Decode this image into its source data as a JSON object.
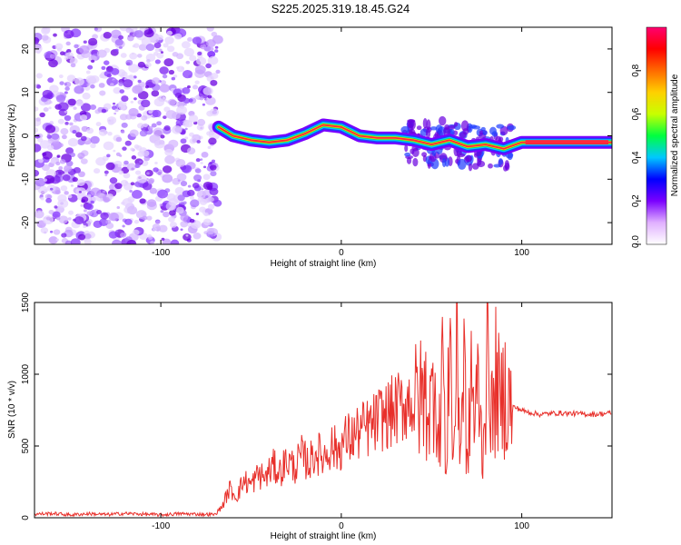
{
  "title": "S225.2025.319.18.45.G24",
  "colors": {
    "snr_line": "#e8302b",
    "frame": "#000000",
    "track_core": "#ff2a3c",
    "track_mid": "#19e04a",
    "track_outer": "#1e90ff",
    "noise": "#8a2be2"
  },
  "chart_data": [
    {
      "type": "heatmap",
      "name": "spectrogram",
      "xlabel": "Height of straight line (km)",
      "ylabel": "Frequency (Hz)",
      "xlim": [
        -170,
        150
      ],
      "ylim": [
        -25,
        25
      ],
      "xticks": [
        -100,
        0,
        100
      ],
      "xtick_labels": [
        "-100",
        "0",
        "100"
      ],
      "yticks": [
        -20,
        -10,
        0,
        10,
        20
      ],
      "ytick_labels": [
        "-20",
        "-10",
        "0",
        "10",
        "20"
      ],
      "noise_region_x": [
        -170,
        -68
      ],
      "track": {
        "x": [
          -68,
          -60,
          -50,
          -40,
          -30,
          -20,
          -10,
          0,
          10,
          20,
          30,
          40,
          50,
          60,
          70,
          80,
          90,
          100,
          110,
          120,
          130,
          140,
          150
        ],
        "freq": [
          2,
          0,
          -1,
          -1.5,
          -1,
          0.5,
          2.5,
          2,
          0,
          -0.5,
          -0.5,
          -1,
          -2,
          -1,
          -2.5,
          -2,
          -3,
          -1.5,
          -1.5,
          -1.5,
          -1.5,
          -1.5,
          -1.5
        ]
      },
      "colorbar": {
        "label": "Normalized spectral amplitude",
        "range": [
          0,
          1
        ],
        "ticks": [
          0.0,
          0.2,
          0.4,
          0.6,
          0.8
        ],
        "tick_labels": [
          "0.0",
          "0.2",
          "0.4",
          "0.6",
          "0.8"
        ],
        "gradient": [
          "#ffffff",
          "#e0b0ff",
          "#7a00ff",
          "#0000ff",
          "#00c8ff",
          "#00ff40",
          "#c8ff00",
          "#ffd000",
          "#ff6a00",
          "#ff0000",
          "#ff0070"
        ]
      }
    },
    {
      "type": "line",
      "name": "snr",
      "xlabel": "Height of straight line (km)",
      "ylabel": "SNR (10 * v/v)",
      "xlim": [
        -170,
        150
      ],
      "ylim": [
        0,
        1500
      ],
      "xticks": [
        -100,
        0,
        100
      ],
      "xtick_labels": [
        "-100",
        "0",
        "100"
      ],
      "yticks": [
        0,
        500,
        1000,
        1500
      ],
      "ytick_labels": [
        "0",
        "500",
        "1000",
        "1500"
      ],
      "series": [
        {
          "name": "SNR",
          "x": [
            -170,
            -160,
            -150,
            -140,
            -130,
            -120,
            -110,
            -100,
            -90,
            -80,
            -70,
            -66,
            -62,
            -58,
            -54,
            -50,
            -46,
            -42,
            -38,
            -34,
            -30,
            -26,
            -22,
            -18,
            -14,
            -10,
            -6,
            -2,
            2,
            6,
            10,
            14,
            18,
            22,
            26,
            30,
            34,
            38,
            42,
            46,
            50,
            52,
            54,
            56,
            58,
            60,
            62,
            64,
            66,
            68,
            70,
            72,
            74,
            76,
            78,
            80,
            82,
            84,
            86,
            88,
            90,
            94,
            98,
            102,
            110,
            120,
            130,
            140,
            150
          ],
          "values": [
            25,
            30,
            20,
            28,
            22,
            30,
            25,
            20,
            28,
            25,
            22,
            80,
            200,
            150,
            260,
            230,
            300,
            280,
            360,
            320,
            400,
            350,
            430,
            380,
            460,
            420,
            500,
            470,
            540,
            560,
            600,
            620,
            650,
            700,
            720,
            750,
            780,
            820,
            800,
            850,
            760,
            1150,
            400,
            1300,
            200,
            1480,
            350,
            1200,
            500,
            1100,
            300,
            1050,
            600,
            1000,
            450,
            900,
            1150,
            600,
            1050,
            700,
            900,
            780,
            760,
            740,
            720,
            730,
            725,
            720,
            730
          ]
        }
      ]
    }
  ]
}
